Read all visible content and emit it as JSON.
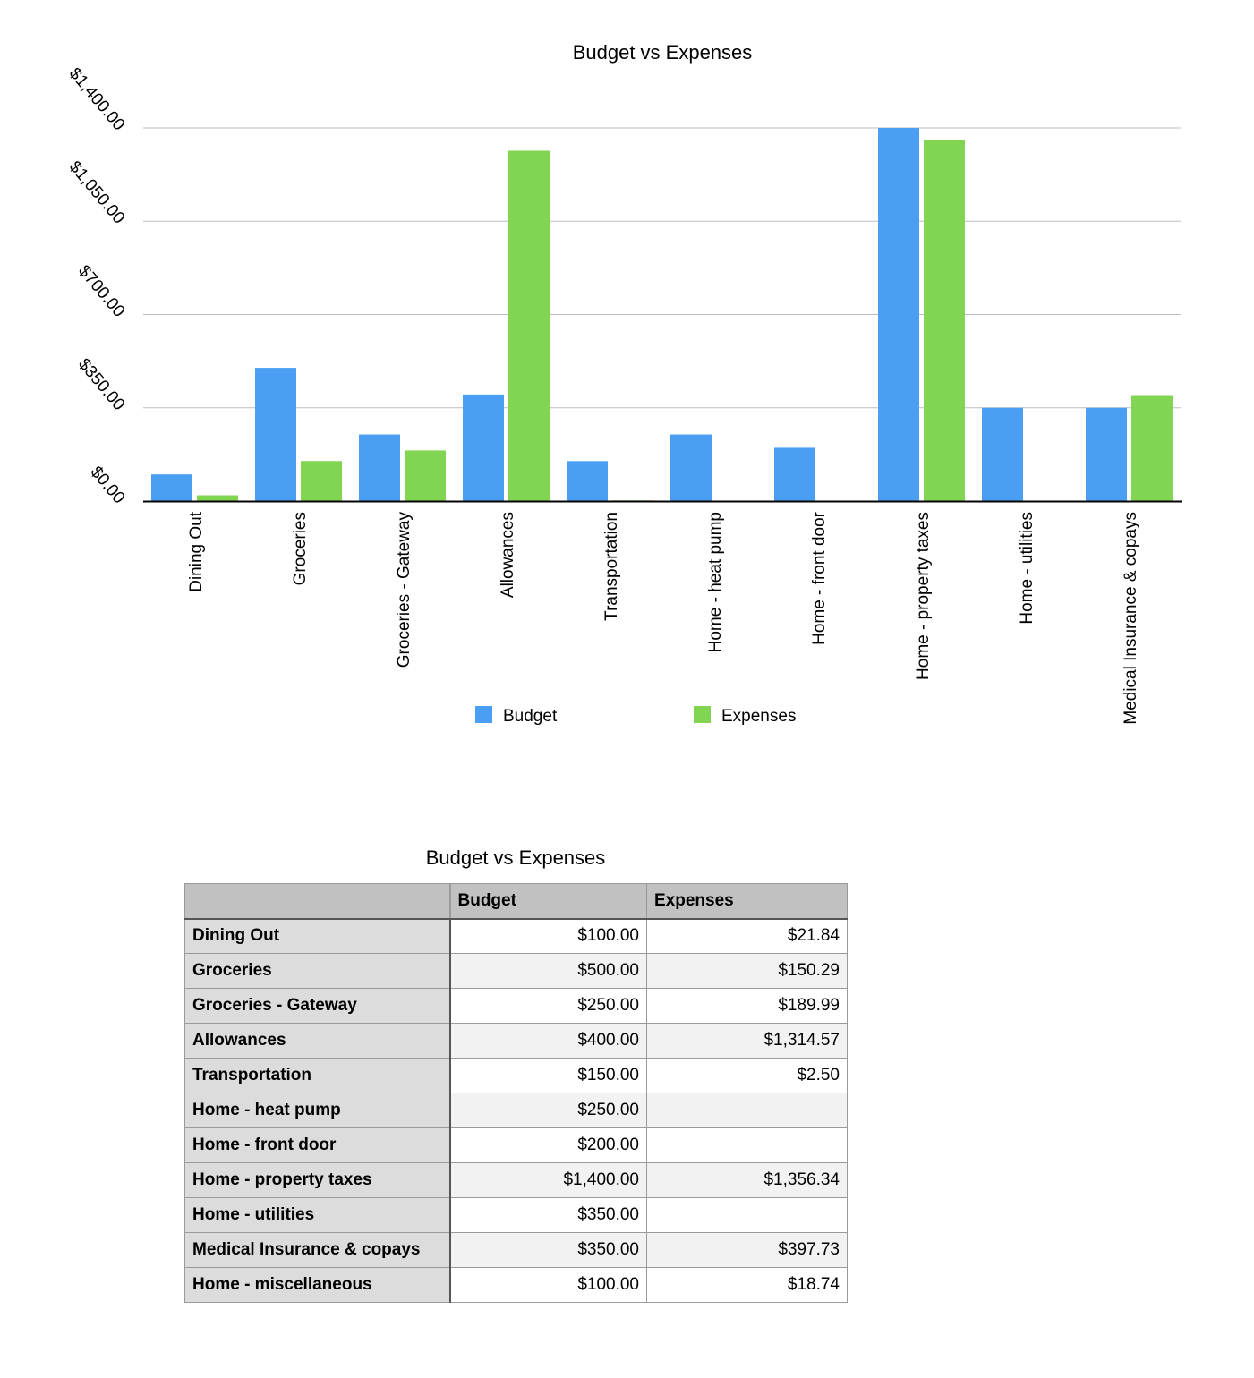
{
  "chart_data": {
    "type": "bar",
    "title": "Budget vs Expenses",
    "categories": [
      "Dining Out",
      "Groceries",
      "Groceries - Gateway",
      "Allowances",
      "Transportation",
      "Home - heat pump",
      "Home - front door",
      "Home - property taxes",
      "Home - utilities",
      "Medical Insurance & copays"
    ],
    "series": [
      {
        "name": "Budget",
        "color": "#4a9ff5",
        "values": [
          100,
          500,
          250,
          400,
          150,
          250,
          200,
          1400,
          350,
          350
        ]
      },
      {
        "name": "Expenses",
        "color": "#82d552",
        "values": [
          21.84,
          150.29,
          189.99,
          1314.57,
          2.5,
          null,
          null,
          1356.34,
          null,
          397.73
        ]
      }
    ],
    "yticks": [
      0,
      350,
      700,
      1050,
      1400
    ],
    "ytick_labels": [
      "$0.00",
      "$350.00",
      "$700.00",
      "$1,050.00",
      "$1,400.00"
    ],
    "ylim": [
      0,
      1400
    ],
    "xlabel": "",
    "ylabel": "",
    "grid": true,
    "legend": "bottom-center"
  },
  "table": {
    "title": "Budget vs Expenses",
    "headers": [
      "",
      "Budget",
      "Expenses"
    ],
    "rows": [
      [
        "Dining Out",
        "$100.00",
        "$21.84"
      ],
      [
        "Groceries",
        "$500.00",
        "$150.29"
      ],
      [
        "Groceries - Gateway",
        "$250.00",
        "$189.99"
      ],
      [
        "Allowances",
        "$400.00",
        "$1,314.57"
      ],
      [
        "Transportation",
        "$150.00",
        "$2.50"
      ],
      [
        "Home - heat pump",
        "$250.00",
        ""
      ],
      [
        "Home - front door",
        "$200.00",
        ""
      ],
      [
        "Home - property taxes",
        "$1,400.00",
        "$1,356.34"
      ],
      [
        "Home - utilities",
        "$350.00",
        ""
      ],
      [
        "Medical Insurance & copays",
        "$350.00",
        "$397.73"
      ],
      [
        "Home - miscellaneous",
        "$100.00",
        "$18.74"
      ]
    ]
  }
}
